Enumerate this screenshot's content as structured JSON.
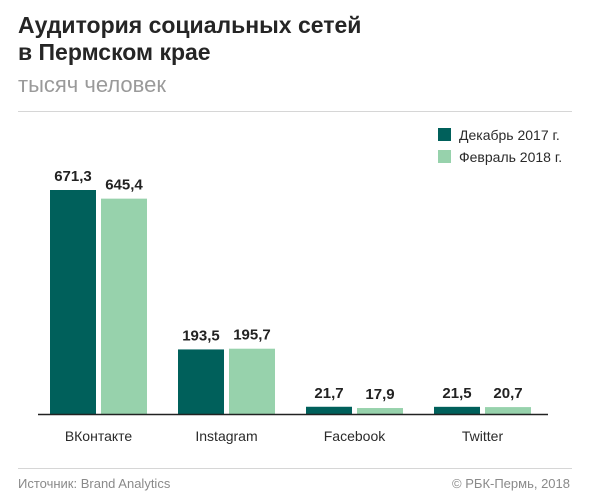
{
  "header": {
    "title_line1": "Аудитория социальных сетей",
    "title_line2": "в Пермском крае",
    "subtitle": "тысяч человек"
  },
  "footer": {
    "source": "Источник: Brand Analytics",
    "copyright": "© РБК-Пермь, 2018"
  },
  "colors": {
    "series1": "#00605b",
    "series2": "#97d2ac"
  },
  "chart_data": {
    "type": "bar",
    "title": "Аудитория социальных сетей в Пермском крае",
    "subtitle": "тысяч человек",
    "xlabel": "",
    "ylabel": "",
    "categories": [
      "ВКонтакте",
      "Instagram",
      "Facebook",
      "Twitter"
    ],
    "series": [
      {
        "name": "Декабрь 2017 г.",
        "values": [
          671.3,
          193.5,
          21.7,
          21.5
        ],
        "labels": [
          "671,3",
          "193,5",
          "21,7",
          "21,5"
        ],
        "color": "#00605b"
      },
      {
        "name": "Февраль 2018 г.",
        "values": [
          645.4,
          195.7,
          17.9,
          20.7
        ],
        "labels": [
          "645,4",
          "195,7",
          "17,9",
          "20,7"
        ],
        "color": "#97d2ac"
      }
    ],
    "ylim": [
      0,
      671.3
    ],
    "grid": false,
    "legend_position": "top-right"
  }
}
